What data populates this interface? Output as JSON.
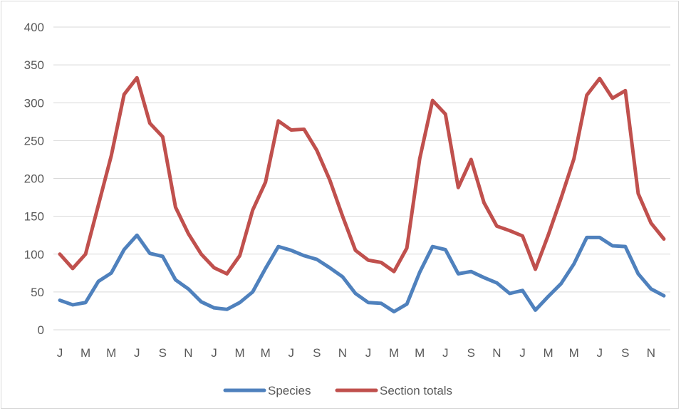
{
  "chart_data": {
    "type": "line",
    "title": "",
    "xlabel": "",
    "ylabel": "",
    "ylim": [
      0,
      400
    ],
    "y_ticks": [
      0,
      50,
      100,
      150,
      200,
      250,
      300,
      350,
      400
    ],
    "grid": true,
    "legend_position": "bottom",
    "x_tick_labels": [
      "J",
      "M",
      "M",
      "J",
      "S",
      "N",
      "J",
      "M",
      "M",
      "J",
      "S",
      "N",
      "J",
      "M",
      "M",
      "J",
      "S",
      "N",
      "J",
      "M",
      "M",
      "J",
      "S",
      "N"
    ],
    "series": [
      {
        "name": "Species",
        "color": "#4f81bd",
        "values": [
          39,
          33,
          36,
          64,
          75,
          106,
          125,
          101,
          97,
          66,
          54,
          37,
          29,
          27,
          36,
          50,
          81,
          110,
          105,
          98,
          93,
          82,
          70,
          48,
          36,
          35,
          24,
          34,
          76,
          110,
          106,
          74,
          77,
          69,
          62,
          48,
          52,
          26,
          44,
          61,
          87,
          122,
          122,
          111,
          110,
          74,
          54,
          45
        ]
      },
      {
        "name": "Section totals",
        "color": "#c0504d",
        "values": [
          100,
          81,
          100,
          165,
          230,
          311,
          333,
          273,
          255,
          162,
          127,
          100,
          82,
          74,
          98,
          158,
          195,
          276,
          264,
          265,
          237,
          198,
          150,
          105,
          92,
          89,
          77,
          108,
          226,
          303,
          285,
          188,
          225,
          168,
          137,
          131,
          124,
          80,
          125,
          174,
          226,
          310,
          332,
          306,
          316,
          180,
          141,
          120
        ]
      }
    ]
  }
}
